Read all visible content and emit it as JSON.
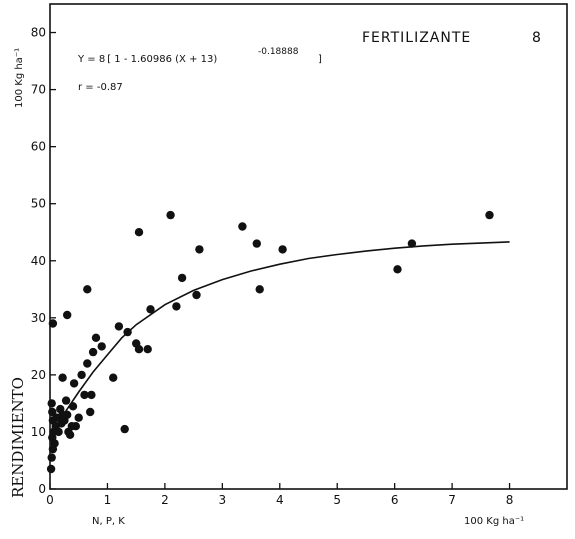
{
  "chart_data": {
    "type": "scatter",
    "title": "FERTILIZANTE",
    "panel_label": "8",
    "xlabel": "N, P, K",
    "xunit": "100 Kg ha⁻¹",
    "ylabel": "RENDIMIENTO",
    "yunit": "100 Kg ha⁻¹",
    "equation": "Y = 8 [ 1 - 1.60986 (X + 13)^-0.18888 ]",
    "equation_display": {
      "main": "Y = 8 [ 1 - 1.60986 (X + 13)",
      "exponent": "-0.18888",
      "close": "]"
    },
    "correlation": "r = -0.87",
    "xlim": [
      0,
      9
    ],
    "ylim": [
      0,
      85
    ],
    "xticks": [
      0,
      1,
      2,
      3,
      4,
      5,
      6,
      7,
      8
    ],
    "yticks": [
      0,
      10,
      20,
      30,
      40,
      50,
      60,
      70,
      80
    ],
    "grid": false,
    "points": [
      [
        0.02,
        3.5
      ],
      [
        0.03,
        5.5
      ],
      [
        0.05,
        7
      ],
      [
        0.04,
        9
      ],
      [
        0.06,
        10
      ],
      [
        0.05,
        12
      ],
      [
        0.04,
        13.5
      ],
      [
        0.03,
        15
      ],
      [
        0.08,
        8
      ],
      [
        0.1,
        11
      ],
      [
        0.12,
        12.5
      ],
      [
        0.15,
        10
      ],
      [
        0.18,
        14
      ],
      [
        0.2,
        11.5
      ],
      [
        0.22,
        13
      ],
      [
        0.25,
        12
      ],
      [
        0.28,
        15.5
      ],
      [
        0.3,
        13
      ],
      [
        0.32,
        10
      ],
      [
        0.35,
        9.5
      ],
      [
        0.38,
        11
      ],
      [
        0.4,
        14.5
      ],
      [
        0.42,
        18.5
      ],
      [
        0.45,
        11
      ],
      [
        0.5,
        12.5
      ],
      [
        0.55,
        20
      ],
      [
        0.6,
        16.5
      ],
      [
        0.65,
        22
      ],
      [
        0.7,
        13.5
      ],
      [
        0.72,
        16.5
      ],
      [
        0.75,
        24
      ],
      [
        0.8,
        26.5
      ],
      [
        0.9,
        25
      ],
      [
        0.05,
        29
      ],
      [
        0.3,
        30.5
      ],
      [
        0.65,
        35
      ],
      [
        1.1,
        19.5
      ],
      [
        1.2,
        28.5
      ],
      [
        1.3,
        10.5
      ],
      [
        1.35,
        27.5
      ],
      [
        1.5,
        25.5
      ],
      [
        1.55,
        24.5
      ],
      [
        1.7,
        24.5
      ],
      [
        1.75,
        31.5
      ],
      [
        2.2,
        32
      ],
      [
        2.3,
        37
      ],
      [
        2.55,
        34
      ],
      [
        1.55,
        45
      ],
      [
        2.1,
        48
      ],
      [
        2.6,
        42
      ],
      [
        3.35,
        46
      ],
      [
        3.6,
        43
      ],
      [
        3.65,
        35
      ],
      [
        4.05,
        42
      ],
      [
        6.05,
        38.5
      ],
      [
        6.3,
        43
      ],
      [
        7.65,
        48
      ],
      [
        0.22,
        19.5
      ]
    ],
    "curve": {
      "label": "fitted curve",
      "x": [
        0,
        0.1,
        0.2,
        0.3,
        0.5,
        0.75,
        1,
        1.25,
        1.5,
        2,
        2.5,
        3,
        3.5,
        4,
        4.5,
        5,
        5.5,
        6,
        6.5,
        7,
        7.5,
        8
      ],
      "y": [
        9.5,
        11,
        12.5,
        14,
        17,
        20.5,
        23.5,
        26.5,
        28.8,
        32.3,
        34.8,
        36.7,
        38.2,
        39.4,
        40.4,
        41.1,
        41.7,
        42.2,
        42.6,
        42.9,
        43.1,
        43.3
      ]
    }
  }
}
